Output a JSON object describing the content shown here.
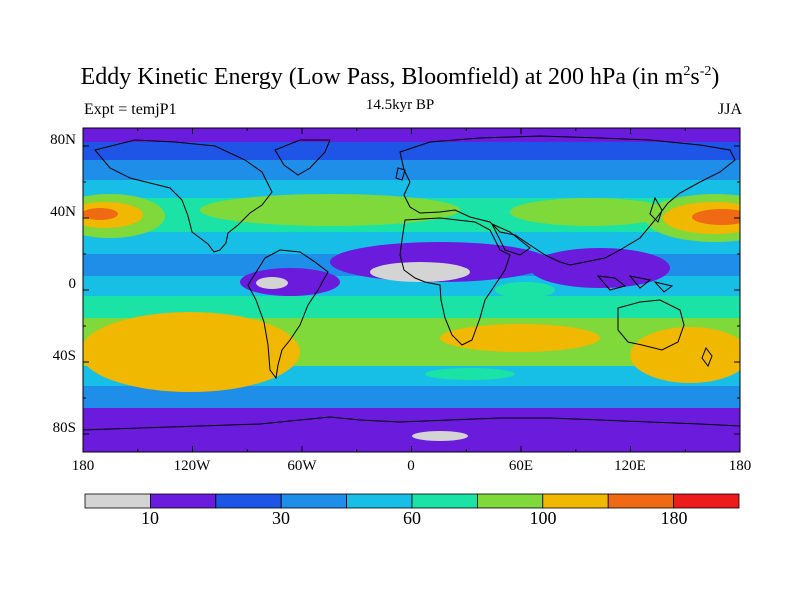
{
  "map": {
    "title_main": "Eddy Kinetic Energy (Low Pass, Bloomfield) at 200 hPa (in m",
    "title_sup1": "2",
    "title_mid": "s",
    "title_sup2": "-2",
    "title_end": ")",
    "subtitle": "14.5kyr BP",
    "left_label": "Expt = temjP1",
    "right_label": "JJA",
    "y_ticks": [
      "80N",
      "40N",
      "0",
      "40S",
      "80S"
    ],
    "x_ticks": [
      "180",
      "120W",
      "60W",
      "0",
      "60E",
      "120E",
      "180"
    ],
    "lat_range": [
      -90,
      90
    ],
    "lon_range": [
      -180,
      180
    ]
  },
  "colorbar": {
    "colors": [
      "#d4d4d4",
      "#6a1bdc",
      "#1f55e6",
      "#1f8ee8",
      "#17bfe6",
      "#1be3a6",
      "#7fd93b",
      "#f0b800",
      "#ef6a12",
      "#ec1c1c"
    ],
    "labels": [
      "10",
      "30",
      "60",
      "100",
      "180"
    ]
  },
  "legend_icons": {
    "coastline": "coastline-outline",
    "bands": "eke-contour-fill"
  }
}
